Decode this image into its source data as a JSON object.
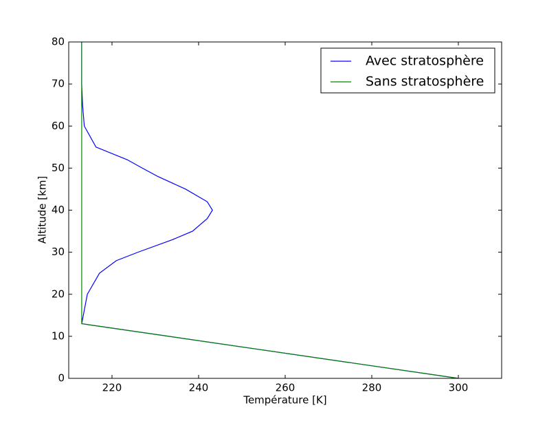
{
  "chart_data": {
    "type": "line",
    "xlabel": "Température [K]",
    "ylabel": "Altitude [km]",
    "xlim": [
      210,
      310
    ],
    "xticks": [
      220,
      240,
      260,
      280,
      300
    ],
    "ylim": [
      0,
      80
    ],
    "yticks": [
      0,
      10,
      20,
      30,
      40,
      50,
      60,
      70,
      80
    ],
    "legend": "upper right",
    "series": [
      {
        "name": "Avec stratosphère",
        "color": "#0000ff",
        "x": [
          300,
          213,
          214.3,
          217.1,
          221,
          226,
          234,
          238.6,
          242,
          243.2,
          242,
          237,
          230.6,
          227,
          223.5,
          216.3,
          213.6,
          213.2,
          213,
          213
        ],
        "values": [
          0,
          13,
          20,
          25,
          28,
          30,
          33,
          35,
          38,
          40,
          42,
          45,
          48,
          50,
          52,
          55,
          60,
          65,
          70,
          80
        ]
      },
      {
        "name": "Sans stratosphère",
        "color": "#008000",
        "x": [
          300,
          213,
          213
        ],
        "values": [
          0,
          13,
          80
        ]
      }
    ]
  }
}
